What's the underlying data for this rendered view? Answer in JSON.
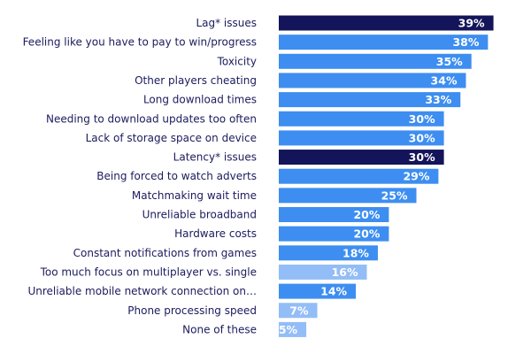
{
  "colors": {
    "highlight": "#14145a",
    "primary": "#3d8ef0",
    "light": "#93bdf7",
    "label_text": "#1b1b5e",
    "value_text": "#ffffff"
  },
  "chart_data": {
    "type": "bar",
    "orientation": "horizontal",
    "title": "",
    "xlabel": "",
    "ylabel": "",
    "xlim": [
      0,
      40
    ],
    "grid": false,
    "legend": "none",
    "value_suffix": "%",
    "categories": [
      "Lag* issues",
      "Feeling like you have to pay to win/progress",
      "Toxicity",
      "Other players cheating",
      "Long download times",
      "Needing to download updates too often",
      "Lack of storage space on device",
      "Latency* issues",
      "Being forced to watch adverts",
      "Matchmaking wait time",
      "Unreliable broadband",
      "Hardware costs",
      "Constant notifications from games",
      "Too much focus on multiplayer vs. single",
      "Unreliable mobile network connection on…",
      "Phone processing speed",
      "None of these"
    ],
    "values": [
      39,
      38,
      35,
      34,
      33,
      30,
      30,
      30,
      29,
      25,
      20,
      20,
      18,
      16,
      14,
      7,
      5
    ],
    "value_labels": [
      "39%",
      "38%",
      "35%",
      "34%",
      "33%",
      "30%",
      "30%",
      "30%",
      "29%",
      "25%",
      "20%",
      "20%",
      "18%",
      "16%",
      "14%",
      "7%",
      "5%"
    ],
    "bar_styles": [
      "highlight",
      "primary",
      "primary",
      "primary",
      "primary",
      "primary",
      "primary",
      "highlight",
      "primary",
      "primary",
      "primary",
      "primary",
      "primary",
      "light",
      "primary",
      "light",
      "light"
    ]
  }
}
